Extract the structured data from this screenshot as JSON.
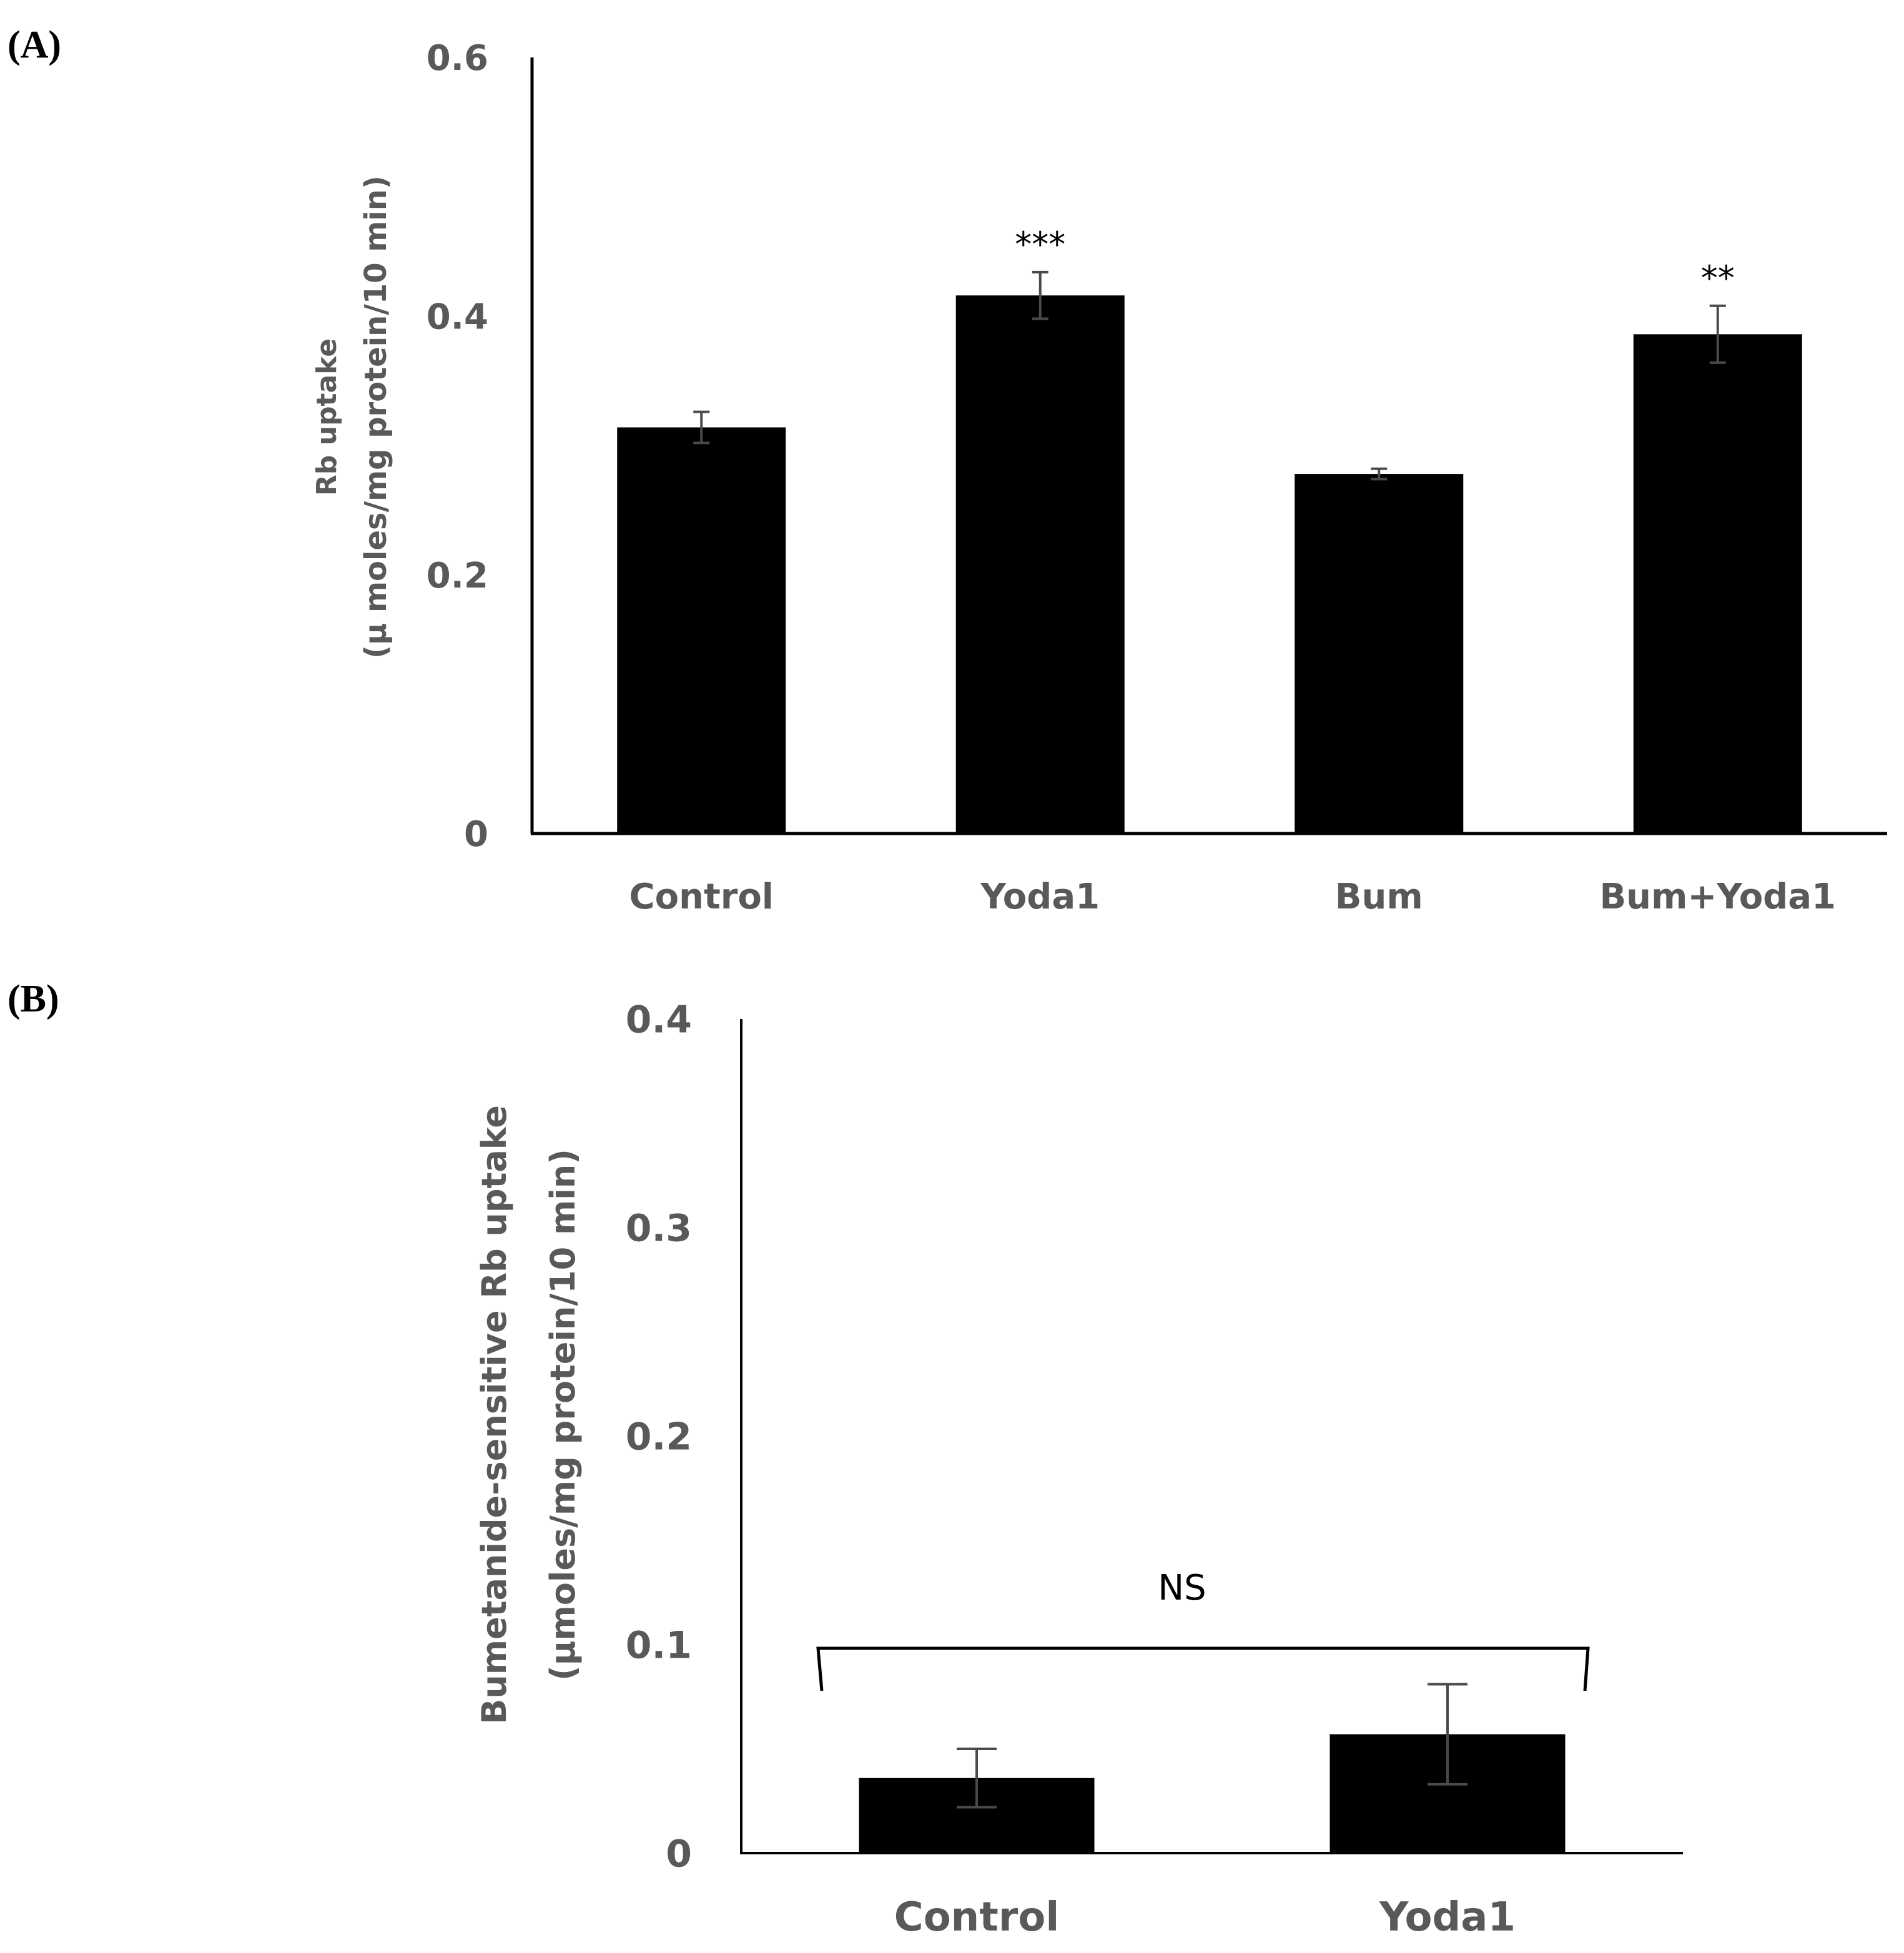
{
  "chart_data": [
    {
      "panel_label": "(A)",
      "type": "bar",
      "categories": [
        "Control",
        "Yoda1",
        "Bum",
        "Bum+Yoda1"
      ],
      "values": [
        0.314,
        0.416,
        0.278,
        0.386
      ],
      "errors": [
        0.012,
        0.018,
        0.004,
        0.022
      ],
      "annotations": [
        "",
        "***",
        "",
        "**"
      ],
      "ylabel_line1": "Rb uptake",
      "ylabel_line2": "(µ moles/mg protein/10 min)",
      "ylim": [
        0,
        0.6
      ],
      "yticks": [
        0,
        0.2,
        0.4,
        0.6
      ],
      "ytick_labels": [
        "0",
        "0.2",
        "0.4",
        "0.6"
      ],
      "bar_color": "#000000",
      "grid": false
    },
    {
      "panel_label": "(B)",
      "type": "bar",
      "categories": [
        "Control",
        "Yoda1"
      ],
      "values": [
        0.036,
        0.057
      ],
      "errors": [
        0.014,
        0.024
      ],
      "significance_label": "NS",
      "ylabel_line1": "Bumetanide-sensitive  Rb uptake",
      "ylabel_line2": "(µmoles/mg protein/10 min)",
      "ylim": [
        0,
        0.4
      ],
      "yticks": [
        0,
        0.1,
        0.2,
        0.3,
        0.4
      ],
      "ytick_labels": [
        "0",
        "0.1",
        "0.2",
        "0.3",
        "0.4"
      ],
      "bar_color": "#000000",
      "grid": false
    }
  ]
}
